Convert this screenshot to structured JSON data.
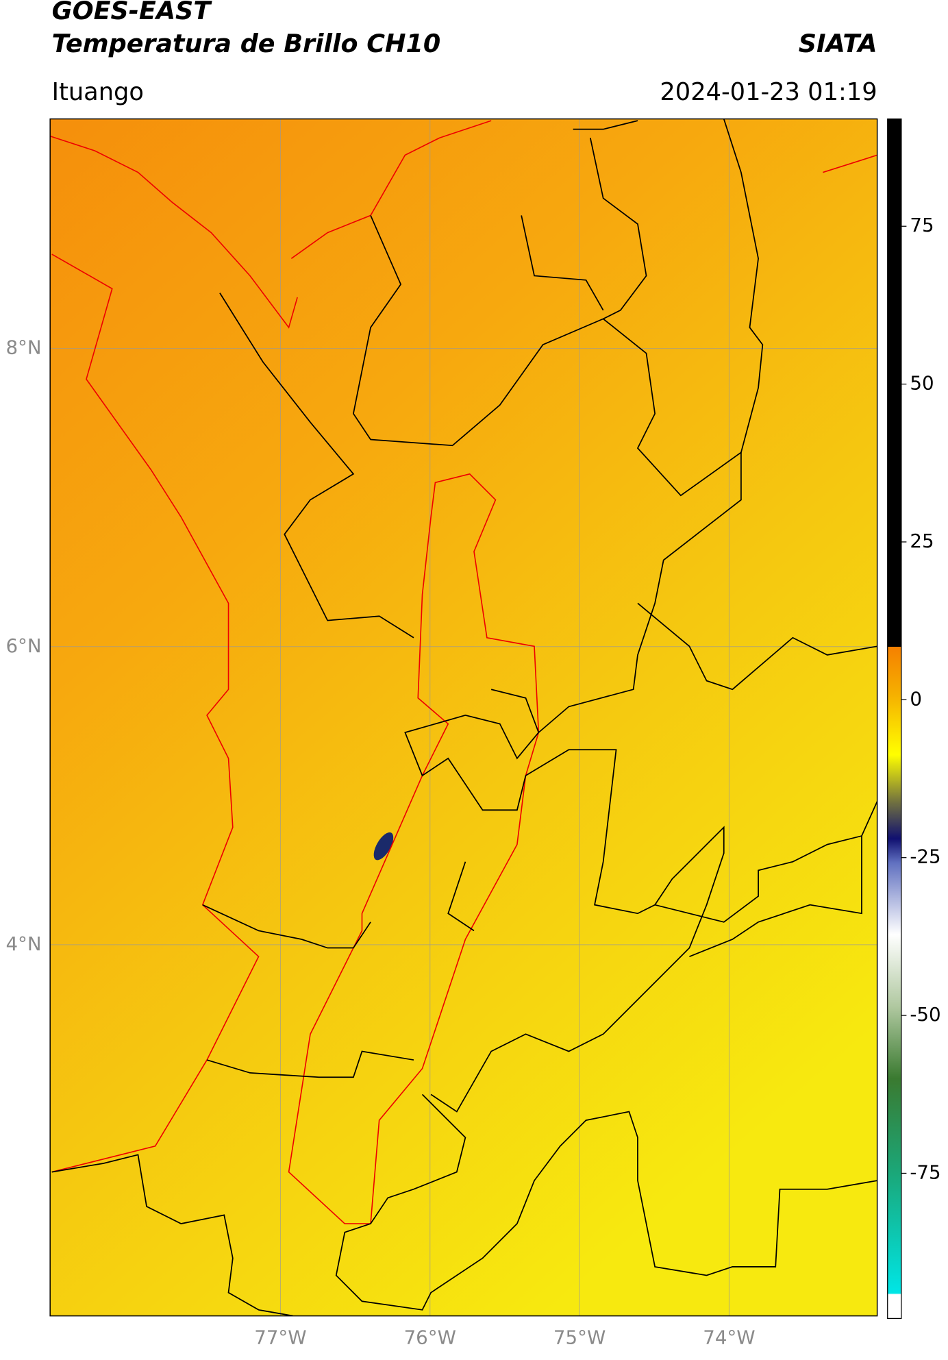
{
  "header": {
    "title": "GOES-EAST",
    "subtitle": "Temperatura de Brillo CH10",
    "brand": "SIATA",
    "place": "Ituango",
    "datetime": "2024-01-23 01:19"
  },
  "map": {
    "xlim": [
      -78.54,
      -73.01
    ],
    "ylim": [
      1.51,
      9.54
    ],
    "xticks": [
      {
        "value": -77,
        "label": "77°W"
      },
      {
        "value": -76,
        "label": "76°W"
      },
      {
        "value": -75,
        "label": "75°W"
      },
      {
        "value": -74,
        "label": "74°W"
      }
    ],
    "yticks": [
      {
        "value": 8,
        "label": "8°N"
      },
      {
        "value": 6,
        "label": "6°N"
      },
      {
        "value": 4,
        "label": "4°N"
      }
    ],
    "grid": true
  },
  "colorbar": {
    "clim": [
      -98,
      92
    ],
    "ticks": [
      75,
      50,
      25,
      0,
      -25,
      -50,
      -75
    ]
  }
}
